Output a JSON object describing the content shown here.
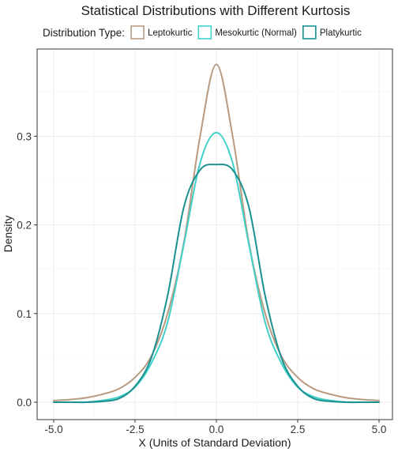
{
  "chart_data": {
    "type": "line",
    "title": "Statistical Distributions with Different Kurtosis",
    "xlabel": "X (Units of Standard Deviation)",
    "ylabel": "Density",
    "xlim": [
      -5.0,
      5.0
    ],
    "ylim": [
      -0.009,
      0.386
    ],
    "x_ticks": [
      -5.0,
      -2.5,
      0.0,
      2.5,
      5.0
    ],
    "x_tick_labels": [
      "-5.0",
      "-2.5",
      "0.0",
      "2.5",
      "5.0"
    ],
    "y_ticks": [
      0.0,
      0.1,
      0.2,
      0.3
    ],
    "y_tick_labels": [
      "0.0",
      "0.1",
      "0.2",
      "0.3"
    ],
    "grid": true,
    "legend": {
      "title": "Distribution Type:",
      "placement": "top",
      "entries": [
        "Leptokurtic",
        "Mesokurtic (Normal)",
        "Platykurtic"
      ]
    },
    "x": [
      -5.0,
      -4.5,
      -4.0,
      -3.5,
      -3.0,
      -2.5,
      -2.0,
      -1.5,
      -1.0,
      -0.5,
      0.0,
      0.5,
      1.0,
      1.5,
      2.0,
      2.5,
      3.0,
      3.5,
      4.0,
      4.5,
      5.0
    ],
    "series": [
      {
        "name": "Leptokurtic",
        "color": "#b89a80",
        "values": [
          0.002,
          0.003,
          0.005,
          0.009,
          0.015,
          0.028,
          0.052,
          0.1,
          0.18,
          0.3,
          0.381,
          0.3,
          0.18,
          0.1,
          0.052,
          0.028,
          0.015,
          0.009,
          0.005,
          0.003,
          0.002
        ]
      },
      {
        "name": "Mesokurtic (Normal)",
        "color": "#40d0c8",
        "values": [
          0.0,
          0.0,
          0.0,
          0.002,
          0.006,
          0.017,
          0.044,
          0.09,
          0.178,
          0.27,
          0.304,
          0.27,
          0.178,
          0.09,
          0.044,
          0.017,
          0.006,
          0.002,
          0.0,
          0.0,
          0.0
        ]
      },
      {
        "name": "Platykurtic",
        "color": "#1a9090",
        "values": [
          0.0,
          0.0,
          0.0,
          0.001,
          0.004,
          0.018,
          0.05,
          0.12,
          0.22,
          0.262,
          0.268,
          0.262,
          0.22,
          0.12,
          0.05,
          0.018,
          0.004,
          0.001,
          0.0,
          0.0,
          0.0
        ]
      }
    ]
  }
}
